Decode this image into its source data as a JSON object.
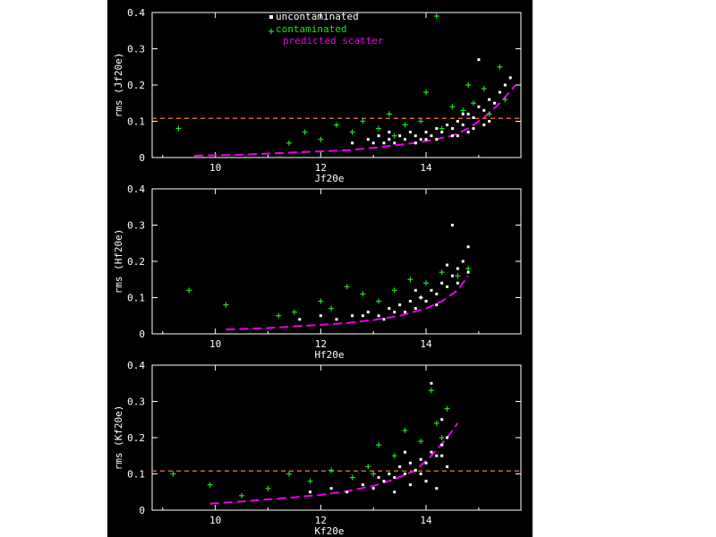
{
  "colors": {
    "background": "#000000",
    "axes": "#ffffff",
    "uncontaminated": "#ffffff",
    "contaminated": "#22dd22",
    "predicted_scatter": "#ee00ee",
    "threshold": "#ff7733"
  },
  "legend": {
    "items": [
      {
        "label": "uncontaminated",
        "marker": "square",
        "color": "#ffffff"
      },
      {
        "label": "contaminated",
        "marker": "plus",
        "color": "#22dd22"
      },
      {
        "label": "predicted scatter",
        "marker": "dash",
        "color": "#ee00ee"
      }
    ]
  },
  "chart_data": [
    {
      "type": "scatter",
      "xlabel": "Jf20e",
      "ylabel": "rms (Jf20e)",
      "xlim": [
        8.8,
        15.8
      ],
      "ylim": [
        0,
        0.4
      ],
      "xticks": [
        10,
        12,
        14
      ],
      "yticks": [
        0,
        0.1,
        0.2,
        0.3,
        0.4
      ],
      "threshold": 0.108,
      "series": [
        {
          "name": "uncontaminated",
          "points": [
            [
              12.9,
              0.05
            ],
            [
              13.0,
              0.04
            ],
            [
              13.1,
              0.06
            ],
            [
              13.2,
              0.04
            ],
            [
              13.3,
              0.05
            ],
            [
              13.4,
              0.04
            ],
            [
              13.5,
              0.06
            ],
            [
              13.6,
              0.05
            ],
            [
              13.7,
              0.07
            ],
            [
              13.8,
              0.06
            ],
            [
              13.9,
              0.05
            ],
            [
              14.0,
              0.07
            ],
            [
              14.1,
              0.06
            ],
            [
              14.2,
              0.08
            ],
            [
              14.3,
              0.07
            ],
            [
              14.4,
              0.09
            ],
            [
              14.5,
              0.08
            ],
            [
              14.6,
              0.1
            ],
            [
              14.7,
              0.09
            ],
            [
              14.8,
              0.12
            ],
            [
              14.9,
              0.11
            ],
            [
              15.0,
              0.14
            ],
            [
              15.1,
              0.13
            ],
            [
              15.2,
              0.16
            ],
            [
              15.3,
              0.15
            ],
            [
              15.4,
              0.18
            ],
            [
              15.5,
              0.2
            ],
            [
              15.6,
              0.22
            ],
            [
              15.0,
              0.27
            ],
            [
              14.9,
              0.08
            ],
            [
              14.6,
              0.06
            ],
            [
              14.8,
              0.07
            ],
            [
              15.2,
              0.1
            ],
            [
              13.8,
              0.04
            ],
            [
              14.2,
              0.05
            ],
            [
              14.0,
              0.05
            ],
            [
              14.5,
              0.06
            ],
            [
              14.7,
              0.12
            ],
            [
              15.1,
              0.09
            ],
            [
              12.6,
              0.04
            ],
            [
              13.3,
              0.07
            ]
          ]
        },
        {
          "name": "contaminated",
          "points": [
            [
              9.3,
              0.08
            ],
            [
              11.4,
              0.04
            ],
            [
              11.7,
              0.07
            ],
            [
              12.0,
              0.05
            ],
            [
              12.3,
              0.09
            ],
            [
              12.6,
              0.07
            ],
            [
              12.8,
              0.1
            ],
            [
              13.1,
              0.08
            ],
            [
              13.3,
              0.12
            ],
            [
              13.6,
              0.09
            ],
            [
              13.9,
              0.1
            ],
            [
              14.2,
              0.39
            ],
            [
              14.3,
              0.08
            ],
            [
              14.5,
              0.14
            ],
            [
              14.7,
              0.13
            ],
            [
              14.9,
              0.15
            ],
            [
              15.1,
              0.19
            ],
            [
              15.4,
              0.25
            ],
            [
              15.5,
              0.16
            ],
            [
              14.0,
              0.18
            ],
            [
              13.4,
              0.06
            ],
            [
              14.8,
              0.2
            ],
            [
              15.2,
              0.12
            ]
          ]
        },
        {
          "name": "predicted scatter",
          "line": [
            [
              9.6,
              0.005
            ],
            [
              10.5,
              0.008
            ],
            [
              11.5,
              0.014
            ],
            [
              12.5,
              0.02
            ],
            [
              13.0,
              0.027
            ],
            [
              13.5,
              0.035
            ],
            [
              14.0,
              0.045
            ],
            [
              14.5,
              0.06
            ],
            [
              14.8,
              0.08
            ],
            [
              15.1,
              0.11
            ],
            [
              15.4,
              0.15
            ],
            [
              15.7,
              0.2
            ]
          ]
        }
      ]
    },
    {
      "type": "scatter",
      "xlabel": "Hf20e",
      "ylabel": "rms (Hf20e)",
      "xlim": [
        8.8,
        15.8
      ],
      "ylim": [
        0,
        0.4
      ],
      "xticks": [
        10,
        12,
        14
      ],
      "yticks": [
        0,
        0.1,
        0.2,
        0.3,
        0.4
      ],
      "series": [
        {
          "name": "uncontaminated",
          "points": [
            [
              11.6,
              0.04
            ],
            [
              12.0,
              0.05
            ],
            [
              12.3,
              0.04
            ],
            [
              12.6,
              0.05
            ],
            [
              12.9,
              0.06
            ],
            [
              13.1,
              0.05
            ],
            [
              13.3,
              0.07
            ],
            [
              13.5,
              0.08
            ],
            [
              13.6,
              0.06
            ],
            [
              13.7,
              0.09
            ],
            [
              13.8,
              0.07
            ],
            [
              13.9,
              0.1
            ],
            [
              14.0,
              0.09
            ],
            [
              14.1,
              0.12
            ],
            [
              14.2,
              0.11
            ],
            [
              14.3,
              0.14
            ],
            [
              14.4,
              0.13
            ],
            [
              14.5,
              0.16
            ],
            [
              14.6,
              0.18
            ],
            [
              14.7,
              0.2
            ],
            [
              14.8,
              0.17
            ],
            [
              14.8,
              0.24
            ],
            [
              14.5,
              0.3
            ],
            [
              13.4,
              0.06
            ],
            [
              13.8,
              0.12
            ],
            [
              14.2,
              0.08
            ],
            [
              14.6,
              0.14
            ],
            [
              13.2,
              0.04
            ],
            [
              12.8,
              0.05
            ],
            [
              14.4,
              0.19
            ]
          ]
        },
        {
          "name": "contaminated",
          "points": [
            [
              9.5,
              0.12
            ],
            [
              10.2,
              0.08
            ],
            [
              11.2,
              0.05
            ],
            [
              11.5,
              0.06
            ],
            [
              12.0,
              0.09
            ],
            [
              12.5,
              0.13
            ],
            [
              12.8,
              0.11
            ],
            [
              13.1,
              0.09
            ],
            [
              13.4,
              0.12
            ],
            [
              13.7,
              0.15
            ],
            [
              14.0,
              0.14
            ],
            [
              14.3,
              0.17
            ],
            [
              14.6,
              0.16
            ],
            [
              14.8,
              0.18
            ],
            [
              12.2,
              0.07
            ],
            [
              13.9,
              0.1
            ]
          ]
        },
        {
          "name": "predicted scatter",
          "line": [
            [
              10.2,
              0.012
            ],
            [
              11.0,
              0.016
            ],
            [
              12.0,
              0.025
            ],
            [
              12.5,
              0.03
            ],
            [
              13.0,
              0.038
            ],
            [
              13.5,
              0.05
            ],
            [
              14.0,
              0.07
            ],
            [
              14.3,
              0.09
            ],
            [
              14.6,
              0.12
            ],
            [
              14.8,
              0.16
            ]
          ]
        }
      ]
    },
    {
      "type": "scatter",
      "xlabel": "Kf20e",
      "ylabel": "rms (Kf20e)",
      "xlim": [
        8.8,
        15.8
      ],
      "ylim": [
        0,
        0.4
      ],
      "xticks": [
        10,
        12,
        14
      ],
      "yticks": [
        0,
        0.1,
        0.2,
        0.3,
        0.4
      ],
      "threshold": 0.108,
      "series": [
        {
          "name": "uncontaminated",
          "points": [
            [
              11.8,
              0.05
            ],
            [
              12.2,
              0.06
            ],
            [
              12.5,
              0.05
            ],
            [
              12.8,
              0.07
            ],
            [
              13.0,
              0.06
            ],
            [
              13.1,
              0.09
            ],
            [
              13.2,
              0.08
            ],
            [
              13.3,
              0.1
            ],
            [
              13.4,
              0.09
            ],
            [
              13.5,
              0.12
            ],
            [
              13.6,
              0.1
            ],
            [
              13.7,
              0.13
            ],
            [
              13.8,
              0.11
            ],
            [
              13.9,
              0.14
            ],
            [
              14.0,
              0.13
            ],
            [
              14.1,
              0.16
            ],
            [
              14.2,
              0.15
            ],
            [
              14.3,
              0.18
            ],
            [
              14.4,
              0.2
            ],
            [
              14.1,
              0.35
            ],
            [
              14.3,
              0.15
            ],
            [
              14.0,
              0.08
            ],
            [
              13.7,
              0.07
            ],
            [
              14.2,
              0.06
            ],
            [
              13.9,
              0.1
            ],
            [
              13.4,
              0.05
            ],
            [
              14.4,
              0.12
            ],
            [
              13.6,
              0.16
            ],
            [
              14.3,
              0.25
            ]
          ]
        },
        {
          "name": "contaminated",
          "points": [
            [
              9.2,
              0.1
            ],
            [
              9.9,
              0.07
            ],
            [
              10.5,
              0.04
            ],
            [
              11.0,
              0.06
            ],
            [
              11.4,
              0.1
            ],
            [
              11.8,
              0.08
            ],
            [
              12.2,
              0.11
            ],
            [
              12.6,
              0.09
            ],
            [
              12.9,
              0.12
            ],
            [
              13.1,
              0.18
            ],
            [
              13.4,
              0.15
            ],
            [
              13.6,
              0.22
            ],
            [
              13.9,
              0.19
            ],
            [
              14.2,
              0.24
            ],
            [
              14.4,
              0.28
            ],
            [
              14.1,
              0.33
            ],
            [
              13.0,
              0.1
            ],
            [
              14.3,
              0.2
            ]
          ]
        },
        {
          "name": "predicted scatter",
          "line": [
            [
              9.9,
              0.018
            ],
            [
              10.6,
              0.025
            ],
            [
              11.3,
              0.033
            ],
            [
              12.0,
              0.042
            ],
            [
              12.5,
              0.052
            ],
            [
              13.0,
              0.067
            ],
            [
              13.4,
              0.085
            ],
            [
              13.8,
              0.11
            ],
            [
              14.1,
              0.15
            ],
            [
              14.4,
              0.2
            ],
            [
              14.6,
              0.24
            ]
          ]
        }
      ]
    }
  ]
}
